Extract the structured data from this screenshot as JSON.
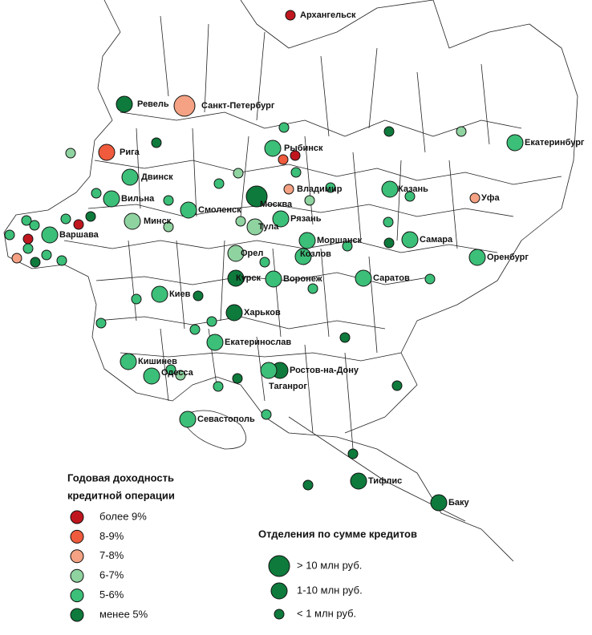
{
  "cities": [
    "Архангельск",
    "Ревель",
    "Санкт-Петербург",
    "Рига",
    "Двинск",
    "Вильна",
    "Минск",
    "Варшава",
    "Смоленск",
    "Москва",
    "Рыбинск",
    "Владимир",
    "Рязань",
    "Тула",
    "Орел",
    "Курск",
    "Козлов",
    "Моршанск",
    "Воронеж",
    "Казань",
    "Самара",
    "Саратов",
    "Уфа",
    "Оренбург",
    "Екатеринбург",
    "Киев",
    "Харьков",
    "Екатеринослав",
    "Кишинев",
    "Одесса",
    "Ростов-на-Дону",
    "Таганрог",
    "Севастополь",
    "Тифлис",
    "Баку"
  ],
  "legend_yield": {
    "title_lines": [
      "Годовая доходность",
      "кредитной операции"
    ],
    "items": [
      {
        "label": "более 9%",
        "color": "#c0171f"
      },
      {
        "label": "8-9%",
        "color": "#ef5b3c"
      },
      {
        "label": "7-8%",
        "color": "#f4a283"
      },
      {
        "label": "6-7%",
        "color": "#8fd3a0"
      },
      {
        "label": "5-6%",
        "color": "#3cbf78"
      },
      {
        "label": "менее 5%",
        "color": "#0e7a3c"
      }
    ]
  },
  "legend_size": {
    "title": "Отделения по сумме кредитов",
    "items": [
      "> 10 млн руб.",
      "1-10 млн руб.",
      "< 1 млн руб."
    ]
  }
}
